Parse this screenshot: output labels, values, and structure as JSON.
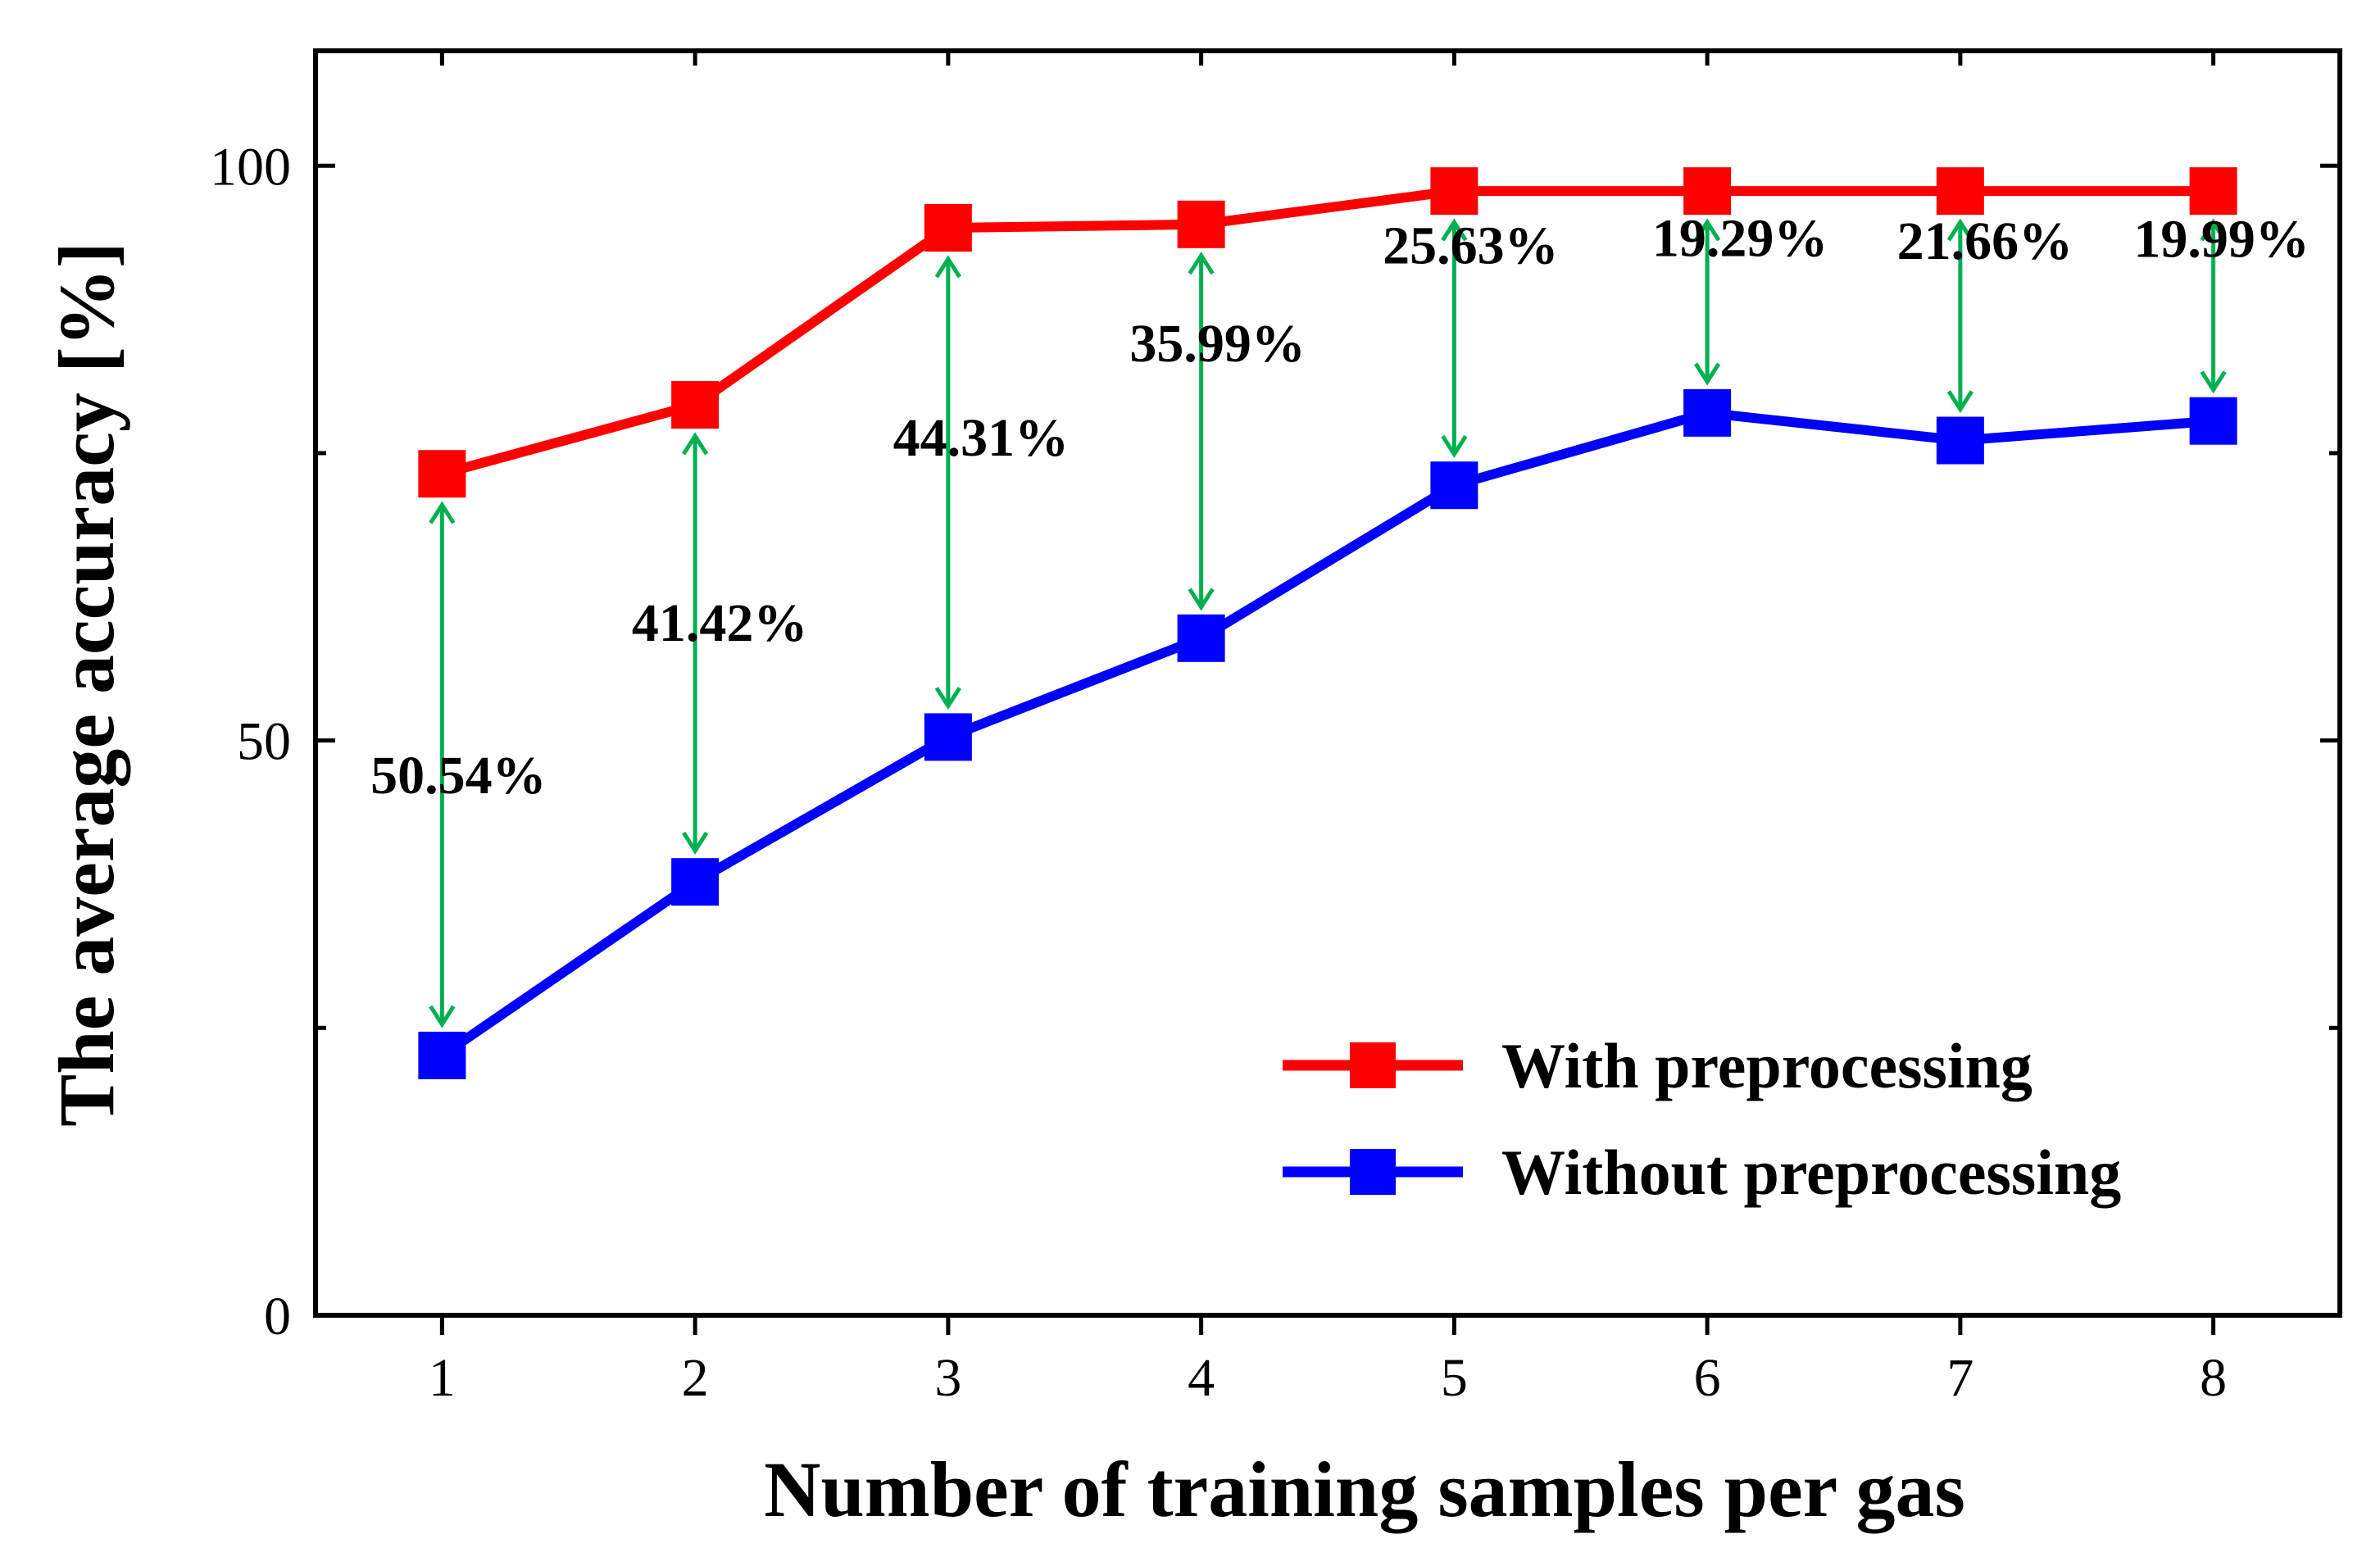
{
  "chart_data": {
    "type": "line",
    "xlabel": "Number of training samples per gas",
    "ylabel": "The average accuracy [%]",
    "x": [
      1,
      2,
      3,
      4,
      5,
      6,
      7,
      8
    ],
    "xlim": [
      0.5,
      8.5
    ],
    "ylim": [
      0,
      110
    ],
    "yticks": [
      0,
      50,
      100
    ],
    "series": [
      {
        "name": "With preprocessing",
        "color": "#ff0000",
        "marker": "square",
        "values": [
          73.2,
          79.2,
          94.6,
          94.9,
          97.8,
          97.8,
          97.8,
          97.8
        ]
      },
      {
        "name": "Without preprocessing",
        "color": "#0000ff",
        "marker": "square",
        "values": [
          22.6,
          37.7,
          50.3,
          58.9,
          72.2,
          78.5,
          76.1,
          77.8
        ]
      }
    ],
    "annotations": [
      {
        "x": 1,
        "text": "50.54%"
      },
      {
        "x": 2,
        "text": "41.42%"
      },
      {
        "x": 3,
        "text": "44.31%"
      },
      {
        "x": 4,
        "text": "35.99%"
      },
      {
        "x": 5,
        "text": "25.63%"
      },
      {
        "x": 6,
        "text": "19.29%"
      },
      {
        "x": 7,
        "text": "21.66%"
      },
      {
        "x": 8,
        "text": "19.99%"
      }
    ],
    "arrow_color": "#00b050",
    "legend": "bottom-right"
  }
}
